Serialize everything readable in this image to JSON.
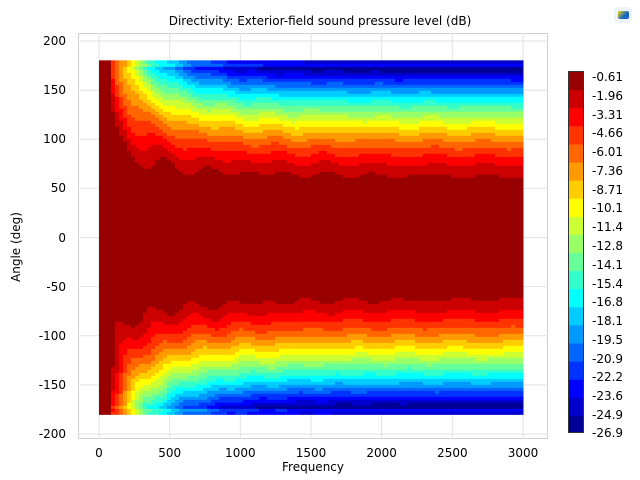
{
  "chart_data": {
    "type": "heatmap",
    "title": "Directivity: Exterior-field sound pressure level (dB)",
    "xlabel": "Frequency",
    "ylabel": "Angle (deg)",
    "xlim": [
      -150,
      3150
    ],
    "ylim": [
      -210,
      210
    ],
    "data_x_range": [
      0,
      3000
    ],
    "data_y_range": [
      -180,
      180
    ],
    "x_ticks": [
      "0",
      "500",
      "1000",
      "1500",
      "2000",
      "2500",
      "3000"
    ],
    "y_ticks": [
      "200",
      "150",
      "100",
      "50",
      "0",
      "-50",
      "-100",
      "-150",
      "-200"
    ],
    "colorbar": {
      "colormap": "jet (reversed, red = high)",
      "min": -26.9,
      "max": 0,
      "labels": [
        "-0.61",
        "-1.96",
        "-3.31",
        "-4.66",
        "-6.01",
        "-7.36",
        "-8.71",
        "-10.1",
        "-11.4",
        "-12.8",
        "-14.1",
        "-15.4",
        "-16.8",
        "-18.1",
        "-19.5",
        "-20.9",
        "-22.2",
        "-23.6",
        "-24.9",
        "-26.9"
      ]
    },
    "description_values": {
      "max_level_region": "|angle| < ~55 deg",
      "min_level": -26.9,
      "min_level_angle": 172
    }
  },
  "logo": "comsol-icon"
}
